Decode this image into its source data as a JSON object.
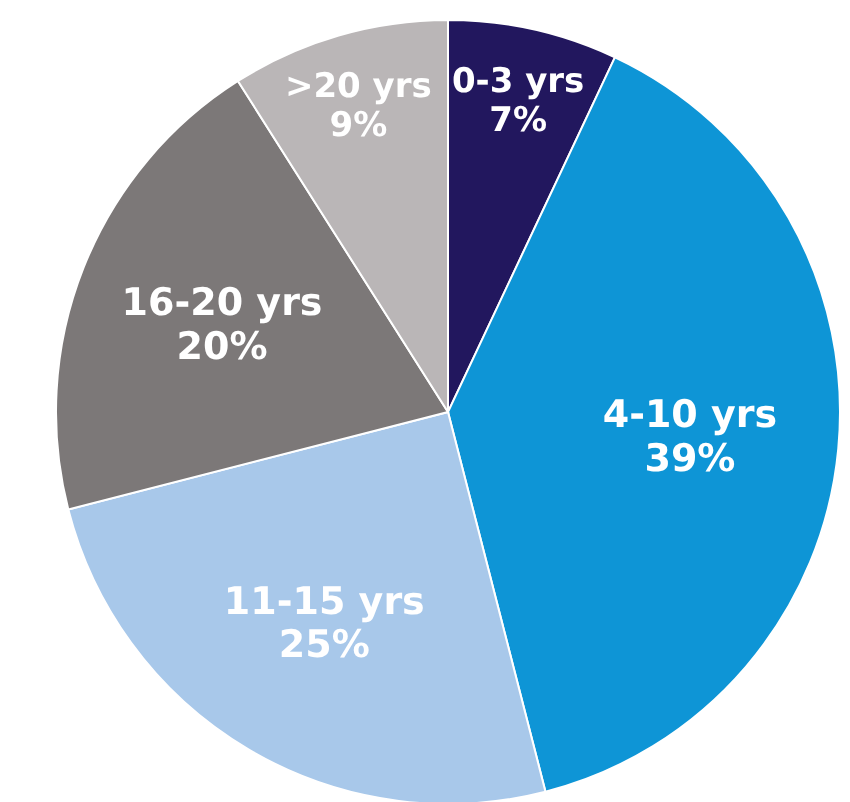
{
  "chart_data": {
    "type": "pie",
    "categories": [
      "0-3 yrs",
      "4-10 yrs",
      "11-15 yrs",
      "16-20 yrs",
      ">20 yrs"
    ],
    "values": [
      7,
      39,
      25,
      20,
      9
    ],
    "colors": [
      "#22175e",
      "#0e95d6",
      "#a8c8ea",
      "#7c7878",
      "#bab6b7"
    ],
    "value_labels": [
      "7%",
      "39%",
      "25%",
      "20%",
      "9%"
    ],
    "legend": false
  }
}
